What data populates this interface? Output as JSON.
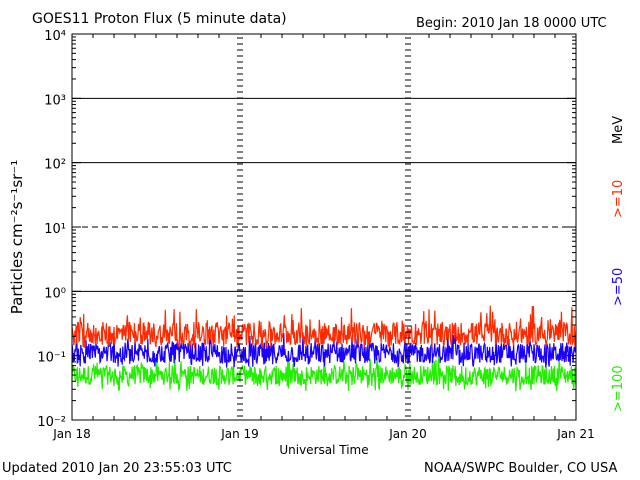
{
  "chart_data": {
    "type": "line",
    "title": "GOES11 Proton Flux (5 minute data)",
    "begin_label": "Begin: 2010 Jan 18 0000 UTC",
    "xlabel": "Universal Time",
    "ylabel": "Particles cm⁻²s⁻¹sr⁻¹",
    "y_scale": "log",
    "ylim": [
      0.01,
      10000
    ],
    "y_ticks": [
      {
        "value": 0.01,
        "label": "10⁻²"
      },
      {
        "value": 0.1,
        "label": "10⁻¹"
      },
      {
        "value": 1,
        "label": "10⁰"
      },
      {
        "value": 10,
        "label": "10¹"
      },
      {
        "value": 100,
        "label": "10²"
      },
      {
        "value": 1000,
        "label": "10³"
      },
      {
        "value": 10000,
        "label": "10⁴"
      }
    ],
    "x_ticks": [
      {
        "value": 0,
        "label": "Jan 18"
      },
      {
        "value": 1,
        "label": "Jan 19"
      },
      {
        "value": 2,
        "label": "Jan 20"
      },
      {
        "value": 3,
        "label": "Jan 21"
      }
    ],
    "xlim": [
      0,
      3
    ],
    "threshold_lines": [
      {
        "value": 10,
        "style": "dashed"
      },
      {
        "value": 100,
        "style": "solid"
      },
      {
        "value": 1000,
        "style": "solid"
      },
      {
        "value": 1,
        "style": "solid"
      }
    ],
    "series": [
      {
        "name": ">=10",
        "color": "#ff2a00",
        "typical": 0.22,
        "min": 0.13,
        "max": 0.6
      },
      {
        "name": ">=50",
        "color": "#1a00ff",
        "typical": 0.11,
        "min": 0.065,
        "max": 0.25
      },
      {
        "name": ">=100",
        "color": "#22ee00",
        "typical": 0.05,
        "min": 0.028,
        "max": 0.1
      }
    ],
    "legend_unit": "MeV",
    "legend_position": "right"
  },
  "footer": {
    "updated": "Updated 2010 Jan 20 23:55:03 UTC",
    "credit": "NOAA/SWPC Boulder, CO USA"
  }
}
